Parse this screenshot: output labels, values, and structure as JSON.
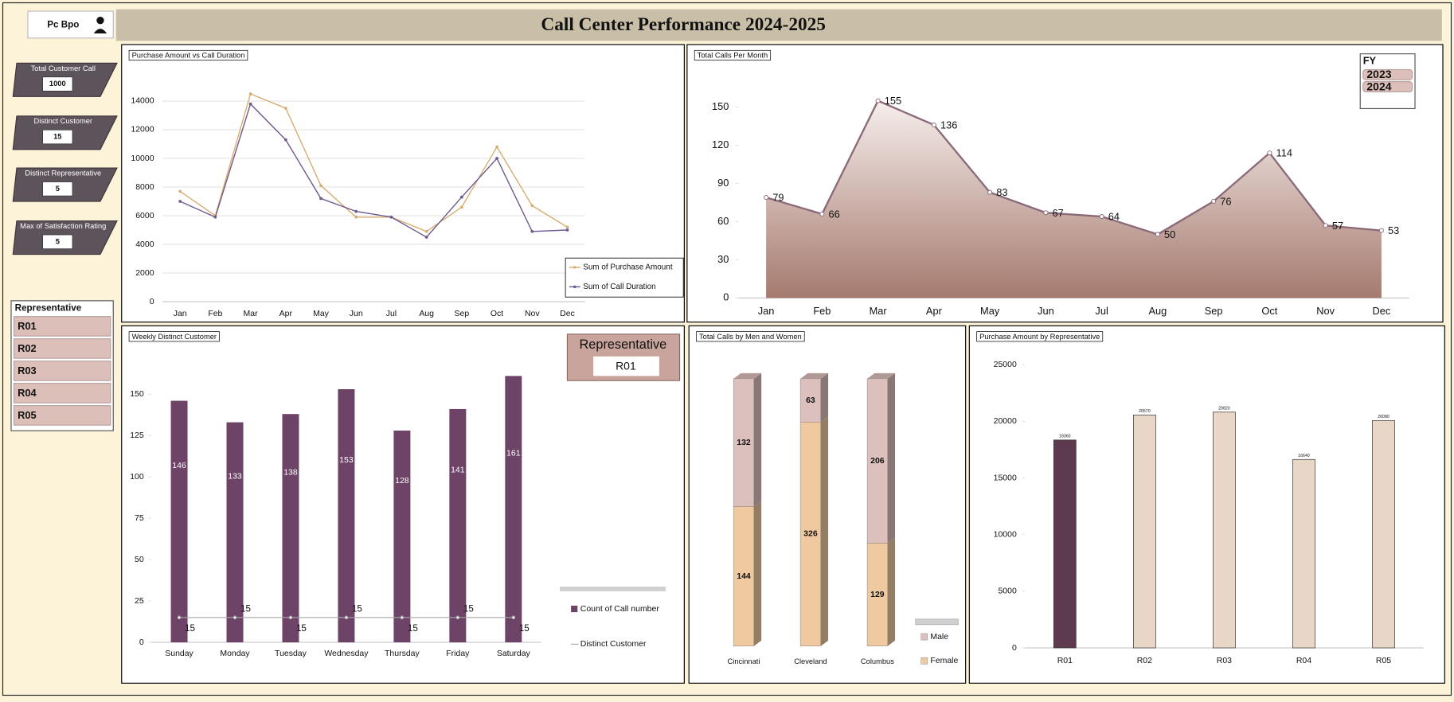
{
  "header": {
    "title": "Call Center Performance 2024-2025",
    "logo": "Pc Bpo"
  },
  "kpis": [
    {
      "label": "Total Customer Call",
      "value": 1000
    },
    {
      "label": "Distinct Customer",
      "value": 15
    },
    {
      "label": "Distinct Representative",
      "value": 5
    },
    {
      "label": "Max of Satisfaction Rating",
      "value": 5
    }
  ],
  "rep_slicer": {
    "title": "Representative",
    "items": [
      "R01",
      "R02",
      "R03",
      "R04",
      "R05"
    ]
  },
  "fy_slicer": {
    "title": "FY",
    "items": [
      "2023",
      "2024"
    ]
  },
  "selection_card": {
    "title": "Representative",
    "value": "R01"
  },
  "chart_data": [
    {
      "type": "line",
      "title": "Purchase Amount vs Call Duration",
      "categories": [
        "Jan",
        "Feb",
        "Mar",
        "Apr",
        "May",
        "Jun",
        "Jul",
        "Aug",
        "Sep",
        "Oct",
        "Nov",
        "Dec"
      ],
      "series": [
        {
          "name": "Sum of Purchase Amount",
          "color": "#d9ad72",
          "values": [
            7700,
            6000,
            14500,
            13500,
            8100,
            5900,
            5900,
            4900,
            6600,
            10800,
            6700,
            5200
          ]
        },
        {
          "name": "Sum of Call Duration",
          "color": "#6e5a8e",
          "values": [
            7000,
            5900,
            13800,
            11300,
            7200,
            6300,
            5900,
            4500,
            7300,
            10000,
            4900,
            5000
          ]
        }
      ],
      "ylim": [
        0,
        16000
      ],
      "yticks": [
        0,
        2000,
        4000,
        6000,
        8000,
        10000,
        12000,
        14000
      ],
      "grid": true,
      "legend": "bottom-right"
    },
    {
      "type": "area",
      "title": "Total Calls Per Month",
      "categories": [
        "Jan",
        "Feb",
        "Mar",
        "Apr",
        "May",
        "Jun",
        "Jul",
        "Aug",
        "Sep",
        "Oct",
        "Nov",
        "Dec"
      ],
      "values": [
        79,
        66,
        155,
        136,
        83,
        67,
        64,
        50,
        76,
        114,
        57,
        53
      ],
      "color": "#a57a6e",
      "ylim": [
        0,
        170
      ],
      "yticks": [
        0,
        30,
        60,
        90,
        120,
        150
      ],
      "grid": false
    },
    {
      "type": "combo",
      "title": "Weekly Distinct Customer",
      "categories": [
        "Sunday",
        "Monday",
        "Tuesday",
        "Wednesday",
        "Thursday",
        "Friday",
        "Saturday"
      ],
      "series": [
        {
          "name": "Count of Call number",
          "type": "bar",
          "color": "#6d4368",
          "values": [
            146,
            133,
            138,
            153,
            128,
            141,
            161
          ]
        },
        {
          "name": "Distinct Customer",
          "type": "line",
          "color": "#a6a6a6",
          "values": [
            15,
            15,
            15,
            15,
            15,
            15,
            15
          ]
        }
      ],
      "ylim": [
        0,
        170
      ],
      "yticks": [
        0,
        25,
        50,
        75,
        100,
        125,
        150
      ],
      "grid": false,
      "legend": "right"
    },
    {
      "type": "stacked_bar",
      "title": "Total Calls by Men and Women",
      "stacking": "percent",
      "categories": [
        "Cincinnati",
        "Cleveland",
        "Columbus"
      ],
      "series": [
        {
          "name": "Female",
          "color": "#efc9a0",
          "values": [
            144,
            326,
            129
          ]
        },
        {
          "name": "Male",
          "color": "#dcc0bd",
          "values": [
            132,
            63,
            206
          ]
        }
      ],
      "legend": "bottom-right"
    },
    {
      "type": "bar",
      "title": "Purchase Amount by Representative",
      "categories": [
        "R01",
        "R02",
        "R03",
        "R04",
        "R05"
      ],
      "values": [
        18360,
        20570,
        20820,
        16640,
        20080
      ],
      "colors": [
        "#5e3a4e",
        "#e8d6c6",
        "#e8d6c6",
        "#e8d6c6",
        "#e8d6c6"
      ],
      "ylim": [
        0,
        25000
      ],
      "yticks": [
        0,
        5000,
        10000,
        15000,
        20000,
        25000
      ],
      "grid": false
    }
  ]
}
